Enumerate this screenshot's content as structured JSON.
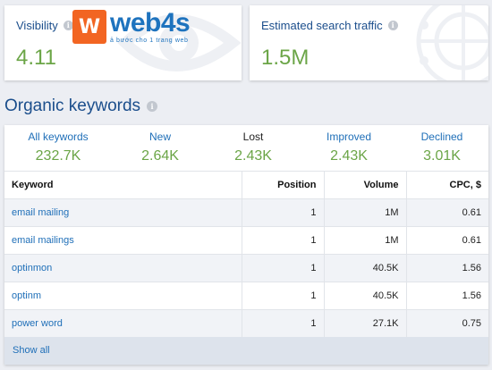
{
  "visibility": {
    "title": "Visibility",
    "value": "4.11"
  },
  "logo": {
    "mark": "W",
    "word": "web4s",
    "tagline": "ả bước cho 1 trang web"
  },
  "traffic": {
    "title": "Estimated search traffic",
    "value": "1.5M"
  },
  "organic": {
    "title": "Organic keywords",
    "stats": [
      {
        "label": "All keywords",
        "value": "232.7K"
      },
      {
        "label": "New",
        "value": "2.64K"
      },
      {
        "label": "Lost",
        "value": "2.43K"
      },
      {
        "label": "Improved",
        "value": "2.43K"
      },
      {
        "label": "Declined",
        "value": "3.01K"
      }
    ],
    "columns": {
      "keyword": "Keyword",
      "position": "Position",
      "volume": "Volume",
      "cpc": "CPC, $"
    },
    "rows": [
      {
        "keyword": "email mailing",
        "position": "1",
        "volume": "1M",
        "cpc": "0.61"
      },
      {
        "keyword": "email mailings",
        "position": "1",
        "volume": "1M",
        "cpc": "0.61"
      },
      {
        "keyword": "optinmon",
        "position": "1",
        "volume": "40.5K",
        "cpc": "1.56"
      },
      {
        "keyword": "optinm",
        "position": "1",
        "volume": "40.5K",
        "cpc": "1.56"
      },
      {
        "keyword": "power word",
        "position": "1",
        "volume": "27.1K",
        "cpc": "0.75"
      }
    ],
    "show_all": "Show all"
  },
  "colors": {
    "accent_blue": "#1f6fb8",
    "value_green": "#6ba547",
    "logo_orange": "#f26522"
  },
  "icons": {
    "info": "info-icon",
    "eye": "eye-icon",
    "target": "target-icon"
  }
}
